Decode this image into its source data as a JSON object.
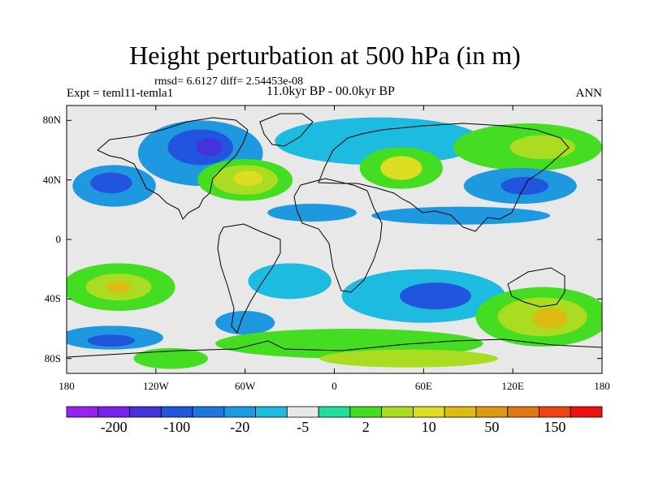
{
  "title": "Height perturbation at 500 hPa (in m)",
  "stats": "rmsd= 6.6127 diff= 2.54453e-08",
  "experiment": "Expt = teml11-temla1",
  "period": "11.0kyr BP - 00.0kyr BP",
  "season": "ANN",
  "map": {
    "projection": "cylindrical-equidistant",
    "lon_range": [
      -180,
      180
    ],
    "lat_range": [
      -90,
      90
    ],
    "x_ticks": [
      {
        "lon": -180,
        "label": "180"
      },
      {
        "lon": -120,
        "label": "120W"
      },
      {
        "lon": -60,
        "label": "60W"
      },
      {
        "lon": 0,
        "label": "0"
      },
      {
        "lon": 60,
        "label": "60E"
      },
      {
        "lon": 120,
        "label": "120E"
      },
      {
        "lon": 180,
        "label": "180"
      }
    ],
    "y_ticks": [
      {
        "lat": 80,
        "label": "80N"
      },
      {
        "lat": 40,
        "label": "40N"
      },
      {
        "lat": 0,
        "label": "0"
      },
      {
        "lat": -40,
        "label": "40S"
      },
      {
        "lat": -80,
        "label": "80S"
      }
    ],
    "background_color": "#e8e8e8",
    "features": [
      {
        "lon": -148,
        "lat": 36,
        "rx": 28,
        "ry": 14,
        "level": -5
      },
      {
        "lon": -150,
        "lat": 38,
        "rx": 14,
        "ry": 7,
        "level": -20
      },
      {
        "lon": -90,
        "lat": 58,
        "rx": 42,
        "ry": 22,
        "level": -5
      },
      {
        "lon": -90,
        "lat": 62,
        "rx": 22,
        "ry": 12,
        "level": -20
      },
      {
        "lon": -84,
        "lat": 62,
        "rx": 9,
        "ry": 6,
        "level": -100
      },
      {
        "lon": -60,
        "lat": 40,
        "rx": 32,
        "ry": 14,
        "level": 5
      },
      {
        "lon": -60,
        "lat": 40,
        "rx": 22,
        "ry": 10,
        "level": 10
      },
      {
        "lon": -58,
        "lat": 41,
        "rx": 10,
        "ry": 5,
        "level": 20
      },
      {
        "lon": 30,
        "lat": 66,
        "rx": 70,
        "ry": 16,
        "level": -2
      },
      {
        "lon": 45,
        "lat": 48,
        "rx": 28,
        "ry": 14,
        "level": 5
      },
      {
        "lon": 45,
        "lat": 48,
        "rx": 14,
        "ry": 8,
        "level": 20
      },
      {
        "lon": 130,
        "lat": 62,
        "rx": 50,
        "ry": 16,
        "level": 5
      },
      {
        "lon": 140,
        "lat": 62,
        "rx": 22,
        "ry": 8,
        "level": 10
      },
      {
        "lon": 125,
        "lat": 36,
        "rx": 38,
        "ry": 12,
        "level": -5
      },
      {
        "lon": 128,
        "lat": 36,
        "rx": 16,
        "ry": 6,
        "level": -20
      },
      {
        "lon": -15,
        "lat": 18,
        "rx": 30,
        "ry": 6,
        "level": -5
      },
      {
        "lon": 85,
        "lat": 16,
        "rx": 60,
        "ry": 6,
        "level": -5
      },
      {
        "lon": -145,
        "lat": -32,
        "rx": 38,
        "ry": 16,
        "level": 5
      },
      {
        "lon": -145,
        "lat": -32,
        "rx": 22,
        "ry": 9,
        "level": 10
      },
      {
        "lon": -145,
        "lat": -32,
        "rx": 8,
        "ry": 4,
        "level": 50
      },
      {
        "lon": -30,
        "lat": -28,
        "rx": 28,
        "ry": 12,
        "level": -2
      },
      {
        "lon": 60,
        "lat": -38,
        "rx": 55,
        "ry": 18,
        "level": -2
      },
      {
        "lon": 68,
        "lat": -38,
        "rx": 24,
        "ry": 9,
        "level": -20
      },
      {
        "lon": 140,
        "lat": -52,
        "rx": 45,
        "ry": 20,
        "level": 5
      },
      {
        "lon": 140,
        "lat": -52,
        "rx": 30,
        "ry": 13,
        "level": 10
      },
      {
        "lon": 145,
        "lat": -53,
        "rx": 12,
        "ry": 7,
        "level": 50
      },
      {
        "lon": -150,
        "lat": -66,
        "rx": 35,
        "ry": 8,
        "level": -5
      },
      {
        "lon": -150,
        "lat": -68,
        "rx": 16,
        "ry": 4,
        "level": -20
      },
      {
        "lon": -110,
        "lat": -80,
        "rx": 25,
        "ry": 7,
        "level": 5
      },
      {
        "lon": -60,
        "lat": -56,
        "rx": 20,
        "ry": 8,
        "level": -5
      },
      {
        "lon": 10,
        "lat": -70,
        "rx": 90,
        "ry": 10,
        "level": 5
      },
      {
        "lon": 50,
        "lat": -80,
        "rx": 60,
        "ry": 6,
        "level": 10
      }
    ]
  },
  "colorbar": {
    "colors": [
      "#9922ee",
      "#7722ee",
      "#4433dd",
      "#2255dd",
      "#1e77dd",
      "#1e99e0",
      "#1ebbe0",
      "#e8e8e8",
      "#22dd99",
      "#44dd22",
      "#aadd22",
      "#dddd22",
      "#ddbb11",
      "#dd9911",
      "#dd7711",
      "#ee4411",
      "#ee1111"
    ],
    "labels": [
      "-200",
      "-100",
      "-20",
      "-5",
      "2",
      "10",
      "50",
      "150"
    ],
    "level_colors": {
      "-200": "#9922ee",
      "-100": "#4433dd",
      "-20": "#2255dd",
      "-5": "#1e99e0",
      "-2": "#1ebbe0",
      "2": "#22dd99",
      "5": "#44dd22",
      "10": "#aadd22",
      "20": "#dddd22",
      "50": "#ddbb11"
    }
  }
}
